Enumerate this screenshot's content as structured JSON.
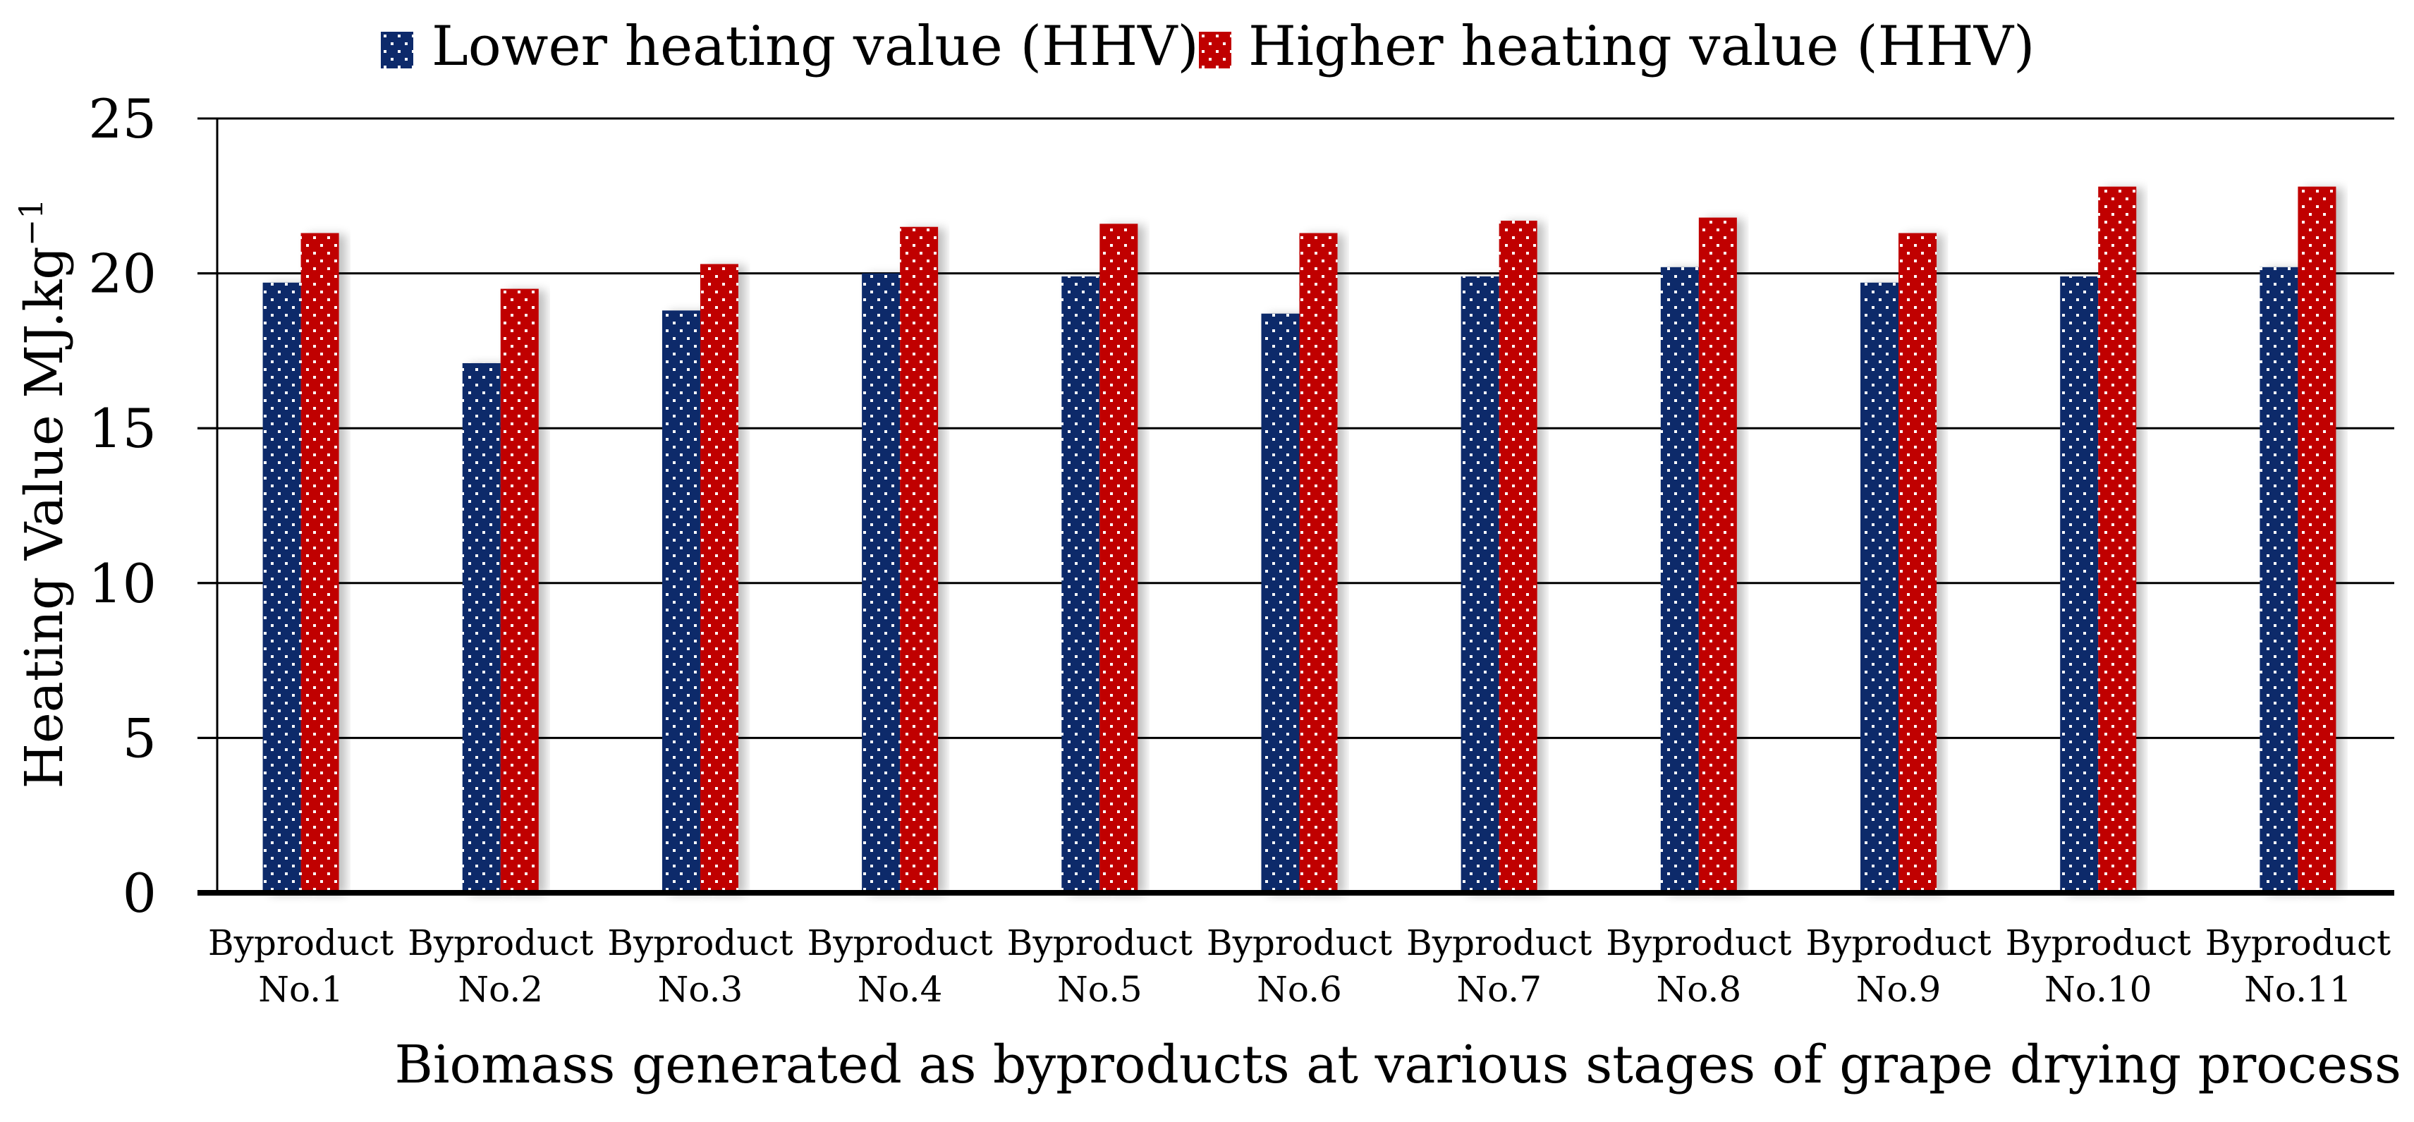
{
  "chart_data": {
    "type": "bar",
    "title": "",
    "xlabel": "Biomass generated as byproducts at various stages of grape drying process",
    "ylabel": "Heating Value  MJ.kg",
    "ylabel_superscript": "−1",
    "ylim": [
      0,
      25
    ],
    "yticks": [
      0,
      5,
      10,
      15,
      20,
      25
    ],
    "grid": true,
    "legend_position": "top-center",
    "categories": [
      [
        "Byproduct",
        "No.1"
      ],
      [
        "Byproduct",
        "No.2"
      ],
      [
        "Byproduct",
        "No.3"
      ],
      [
        "Byproduct",
        "No.4"
      ],
      [
        "Byproduct",
        "No.5"
      ],
      [
        "Byproduct",
        "No.6"
      ],
      [
        "Byproduct",
        "No.7"
      ],
      [
        "Byproduct",
        "No.8"
      ],
      [
        "Byproduct",
        "No.9"
      ],
      [
        "Byproduct",
        "No.10"
      ],
      [
        "Byproduct",
        "No.11"
      ]
    ],
    "series": [
      {
        "name": "Lower heating value (HHV)",
        "color": "#0d2a6b",
        "values": [
          19.7,
          17.1,
          18.8,
          20.0,
          19.9,
          18.7,
          19.9,
          20.2,
          19.7,
          19.9,
          20.2
        ]
      },
      {
        "name": "Higher heating value (HHV)",
        "color": "#c00000",
        "values": [
          21.3,
          19.5,
          20.3,
          21.5,
          21.6,
          21.3,
          21.7,
          21.8,
          21.3,
          22.8,
          22.8
        ]
      }
    ]
  }
}
